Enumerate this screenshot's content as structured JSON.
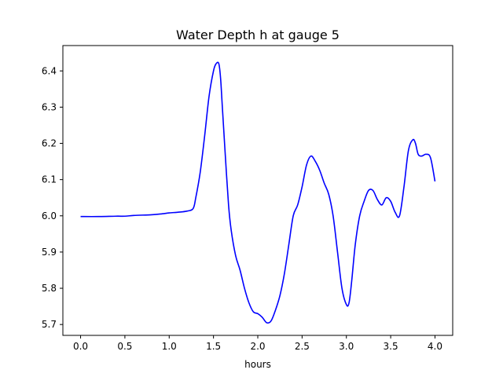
{
  "chart_data": {
    "type": "line",
    "title": "Water Depth h at gauge 5",
    "xlabel": "hours",
    "ylabel": "",
    "xlim": [
      -0.2,
      4.2
    ],
    "ylim": [
      5.67,
      6.47
    ],
    "xticks": [
      0.0,
      0.5,
      1.0,
      1.5,
      2.0,
      2.5,
      3.0,
      3.5,
      4.0
    ],
    "xtick_labels": [
      "0.0",
      "0.5",
      "1.0",
      "1.5",
      "2.0",
      "2.5",
      "3.0",
      "3.5",
      "4.0"
    ],
    "yticks": [
      5.7,
      5.8,
      5.9,
      6.0,
      6.1,
      6.2,
      6.3,
      6.4
    ],
    "ytick_labels": [
      "5.7",
      "5.8",
      "5.9",
      "6.0",
      "6.1",
      "6.2",
      "6.3",
      "6.4"
    ],
    "grid": false,
    "legend": "none",
    "colors": {
      "line": "#0000ff",
      "axes": "#000000",
      "background": "#ffffff"
    },
    "series": [
      {
        "x": [
          0.0,
          0.2,
          0.4,
          0.5,
          0.6,
          0.8,
          0.9,
          1.0,
          1.1,
          1.2,
          1.27,
          1.3,
          1.35,
          1.4,
          1.45,
          1.5,
          1.53,
          1.56,
          1.58,
          1.6,
          1.63,
          1.67,
          1.7,
          1.75,
          1.8,
          1.85,
          1.9,
          1.95,
          2.0,
          2.05,
          2.1,
          2.15,
          2.2,
          2.25,
          2.3,
          2.35,
          2.4,
          2.45,
          2.5,
          2.55,
          2.6,
          2.65,
          2.7,
          2.75,
          2.8,
          2.85,
          2.9,
          2.95,
          3.0,
          3.03,
          3.06,
          3.1,
          3.15,
          3.2,
          3.25,
          3.3,
          3.35,
          3.4,
          3.45,
          3.5,
          3.55,
          3.6,
          3.65,
          3.7,
          3.75,
          3.78,
          3.81,
          3.85,
          3.9,
          3.95,
          4.0
        ],
        "y": [
          5.998,
          5.998,
          5.999,
          5.999,
          6.001,
          6.003,
          6.005,
          6.008,
          6.01,
          6.013,
          6.02,
          6.05,
          6.12,
          6.22,
          6.33,
          6.4,
          6.42,
          6.42,
          6.38,
          6.3,
          6.18,
          6.03,
          5.96,
          5.89,
          5.85,
          5.8,
          5.76,
          5.735,
          5.73,
          5.72,
          5.705,
          5.71,
          5.74,
          5.78,
          5.84,
          5.92,
          6.0,
          6.03,
          6.08,
          6.14,
          6.165,
          6.15,
          6.125,
          6.09,
          6.06,
          6.0,
          5.9,
          5.8,
          5.755,
          5.76,
          5.82,
          5.92,
          6.0,
          6.04,
          6.07,
          6.07,
          6.045,
          6.03,
          6.05,
          6.04,
          6.01,
          6.0,
          6.08,
          6.18,
          6.21,
          6.2,
          6.17,
          6.165,
          6.17,
          6.16,
          6.095
        ]
      }
    ]
  }
}
